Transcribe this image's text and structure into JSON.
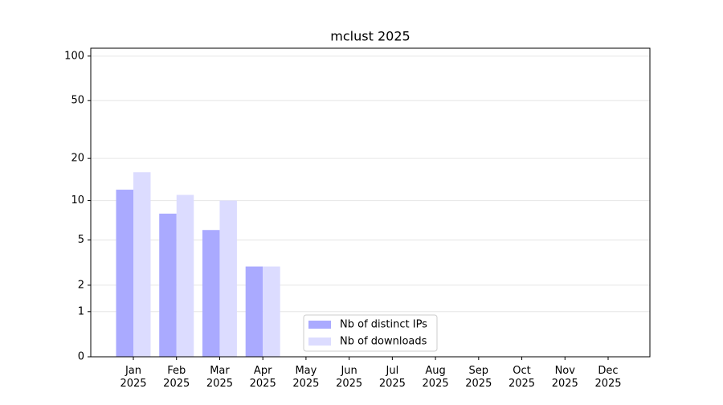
{
  "chart_data": {
    "type": "bar",
    "title": "mclust 2025",
    "categories": [
      "Jan 2025",
      "Feb 2025",
      "Mar 2025",
      "Apr 2025",
      "May 2025",
      "Jun 2025",
      "Jul 2025",
      "Aug 2025",
      "Sep 2025",
      "Oct 2025",
      "Nov 2025",
      "Dec 2025"
    ],
    "series": [
      {
        "name": "Nb of distinct IPs",
        "color": "#aaaaff",
        "values": [
          12,
          8,
          6,
          3,
          null,
          null,
          null,
          null,
          null,
          null,
          null,
          null
        ]
      },
      {
        "name": "Nb of downloads",
        "color": "#dcdcff",
        "values": [
          16,
          11,
          10,
          3,
          null,
          null,
          null,
          null,
          null,
          null,
          null,
          null
        ]
      }
    ],
    "yscale": "log1p",
    "ylim": [
      0,
      113
    ],
    "yticks": [
      0,
      1,
      2,
      5,
      10,
      20,
      50,
      100
    ],
    "grid": true,
    "legend": "lower center"
  }
}
